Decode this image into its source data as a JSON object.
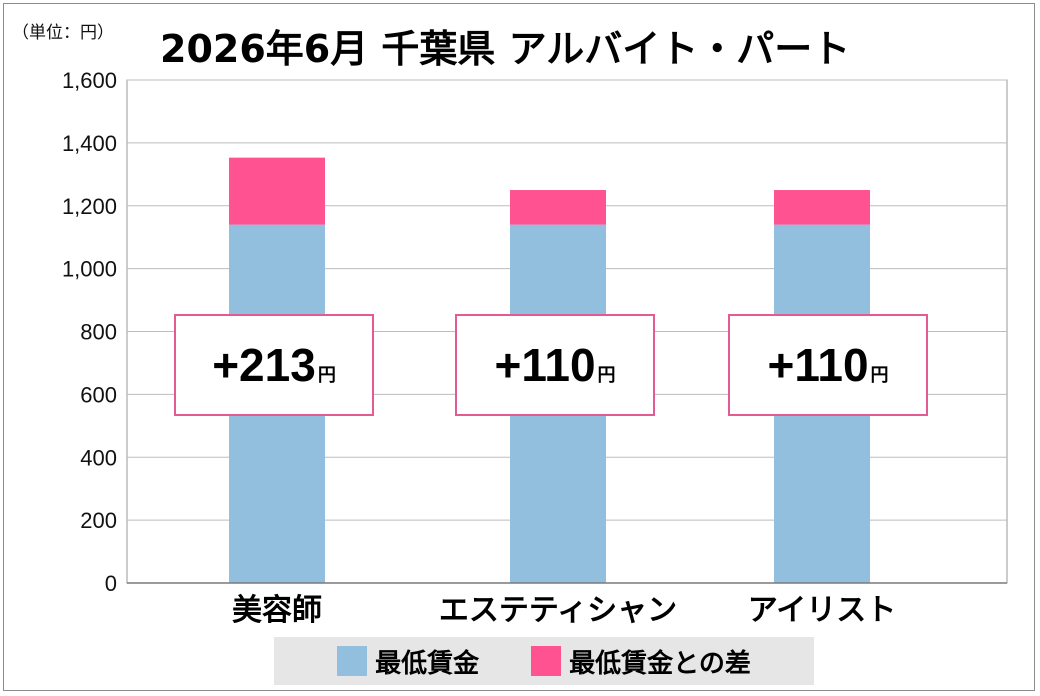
{
  "unit_note": "（単位：円）",
  "chart_data": {
    "type": "bar",
    "stacked": true,
    "title": "2026年6月  千葉県  アルバイト・パート",
    "xlabel": "",
    "ylabel": "",
    "ylim": [
      0,
      1600
    ],
    "yticks": [
      0,
      200,
      400,
      600,
      800,
      1000,
      1200,
      1400,
      1600
    ],
    "ytick_labels": [
      "0",
      "200",
      "400",
      "600",
      "800",
      "1,000",
      "1,200",
      "1,400",
      "1,600"
    ],
    "grid": true,
    "categories": [
      "美容師",
      "エステティシャン",
      "アイリスト"
    ],
    "series": [
      {
        "name": "最低賃金",
        "values": [
          1140,
          1140,
          1140
        ],
        "color": "#93bfdf"
      },
      {
        "name": "最低賃金との差",
        "values": [
          213,
          110,
          110
        ],
        "color": "#ff5290"
      }
    ],
    "annotations": [
      {
        "text": "+213",
        "unit": "円"
      },
      {
        "text": "+110",
        "unit": "円"
      },
      {
        "text": "+110",
        "unit": "円"
      }
    ],
    "legend_position": "bottom"
  }
}
